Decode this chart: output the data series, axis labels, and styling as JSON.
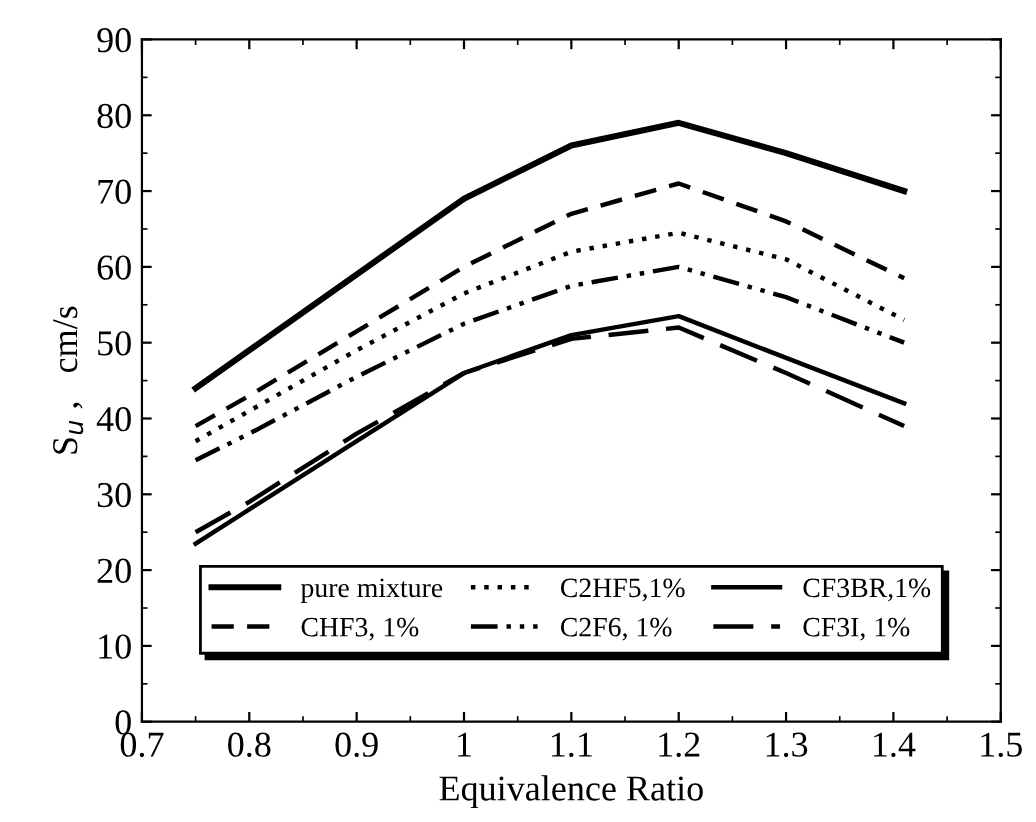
{
  "chart_data": {
    "type": "line",
    "xlabel": "Equivalence Ratio",
    "ylabel": "S$_{u}$ ,   cm/s",
    "x": [
      0.75,
      0.8,
      0.9,
      1.0,
      1.1,
      1.2,
      1.3,
      1.41
    ],
    "series": [
      {
        "name": "pure mixture",
        "color": "#000000",
        "line_style": "solid",
        "values": [
          44,
          49,
          59,
          69,
          76,
          79,
          75,
          70
        ]
      },
      {
        "name": "CHF3, 1%",
        "color": "#000000",
        "line_style": "dashed",
        "values": [
          39,
          43,
          51.5,
          60,
          67,
          71,
          66,
          58.5
        ]
      },
      {
        "name": "C2HF5,1%",
        "color": "#000000",
        "line_style": "dotted",
        "values": [
          37,
          41,
          49,
          56.5,
          62,
          64.5,
          61,
          53
        ]
      },
      {
        "name": "C2F6, 1%",
        "color": "#000000",
        "line_style": "dashdotdot",
        "values": [
          34.5,
          38,
          45.5,
          52.5,
          57.5,
          60,
          56,
          50
        ]
      },
      {
        "name": "CF3BR,1%",
        "color": "#000000",
        "line_style": "solid",
        "values": [
          23.5,
          28,
          37,
          46,
          51,
          53.5,
          48,
          42
        ]
      },
      {
        "name": "CF3I, 1%",
        "color": "#000000",
        "line_style": "longdashed",
        "values": [
          25,
          29,
          38,
          46,
          50.5,
          52,
          46,
          39
        ]
      }
    ],
    "xlim": [
      0.7,
      1.5
    ],
    "xticks": [
      0.7,
      0.8,
      0.9,
      1,
      1.1,
      1.2,
      1.3,
      1.4,
      1.5
    ],
    "ylim": [
      0,
      90
    ],
    "yticks": [
      0,
      10,
      20,
      30,
      40,
      50,
      60,
      70,
      80,
      90
    ],
    "grid": false,
    "legend": "bottom",
    "marker": "none"
  }
}
